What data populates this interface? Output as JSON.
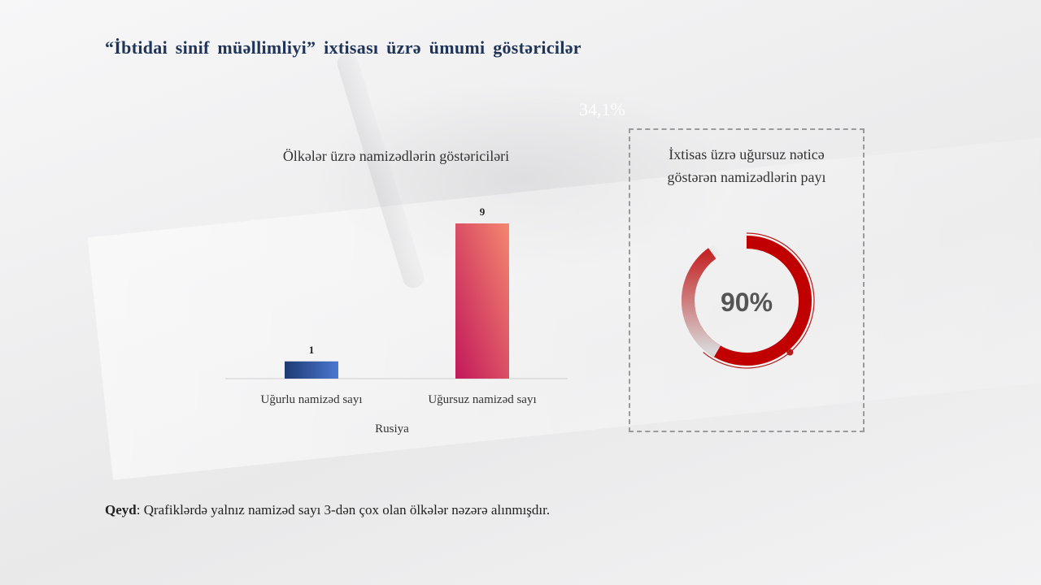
{
  "slide": {
    "title": "“İbtidai sinif müəllimliyi” ixtisası üzrə ümumi göstəricilər",
    "ghost_text": "34,1%"
  },
  "chart_data": [
    {
      "type": "bar",
      "title": "Ölkələr üzrə namizədlərin göstəriciləri",
      "categories": [
        "Uğurlu namizəd sayı",
        "Uğursuz namizəd sayı"
      ],
      "values": [
        1,
        9
      ],
      "data_labels": [
        "1",
        "9"
      ],
      "xlabel": "Rusiya",
      "ylabel": "",
      "ylim": [
        0,
        9
      ],
      "grid": false,
      "colors": [
        {
          "from": "#1f3a73",
          "to": "#4a78d0"
        },
        {
          "from": "#c2185b",
          "to": "#f4876f"
        }
      ]
    },
    {
      "type": "pie",
      "subtype": "donut",
      "title_lines": [
        "İxtisas üzrə uğursuz nəticə",
        "göstərən namizədlərin payı"
      ],
      "value": 0.9,
      "label": "90%",
      "colors": {
        "fill": "#c00000",
        "fade": "#d8d8da",
        "outline": "#b71c1c"
      }
    }
  ],
  "note": {
    "label": "Qeyd",
    "text": ": Qrafiklərdə yalnız namizəd sayı 3-dən çox olan ölkələr nəzərə alınmışdır."
  }
}
